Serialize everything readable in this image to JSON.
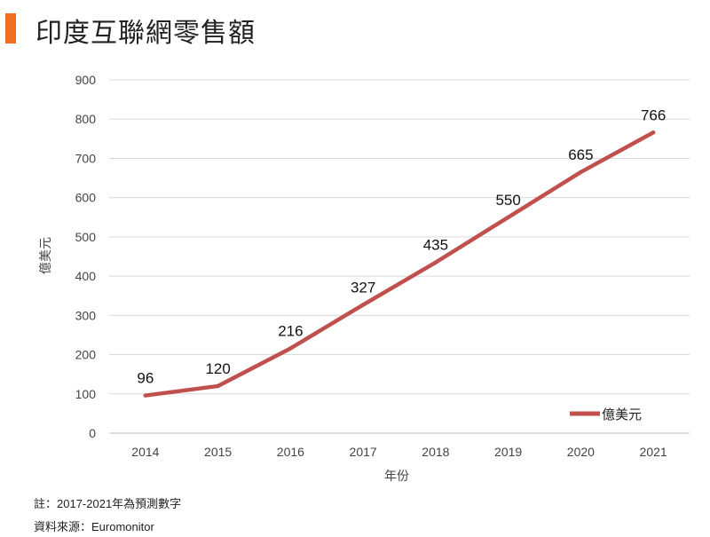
{
  "title": "印度互聯網零售額",
  "chart_data": {
    "type": "line",
    "title": "印度互聯網零售額",
    "xlabel": "年份",
    "ylabel": "億美元",
    "categories": [
      "2014",
      "2015",
      "2016",
      "2017",
      "2018",
      "2019",
      "2020",
      "2021"
    ],
    "series": [
      {
        "name": "億美元",
        "values": [
          96,
          120,
          216,
          327,
          435,
          550,
          665,
          766
        ]
      }
    ],
    "ylim": [
      0,
      900
    ],
    "yticks": [
      0,
      100,
      200,
      300,
      400,
      500,
      600,
      700,
      800,
      900
    ],
    "grid": true,
    "legend": "bottom-right",
    "line_color": "#c0504d"
  },
  "notes": {
    "note": "註：2017-2021年為預測數字",
    "source": "資料來源：Euromonitor"
  }
}
